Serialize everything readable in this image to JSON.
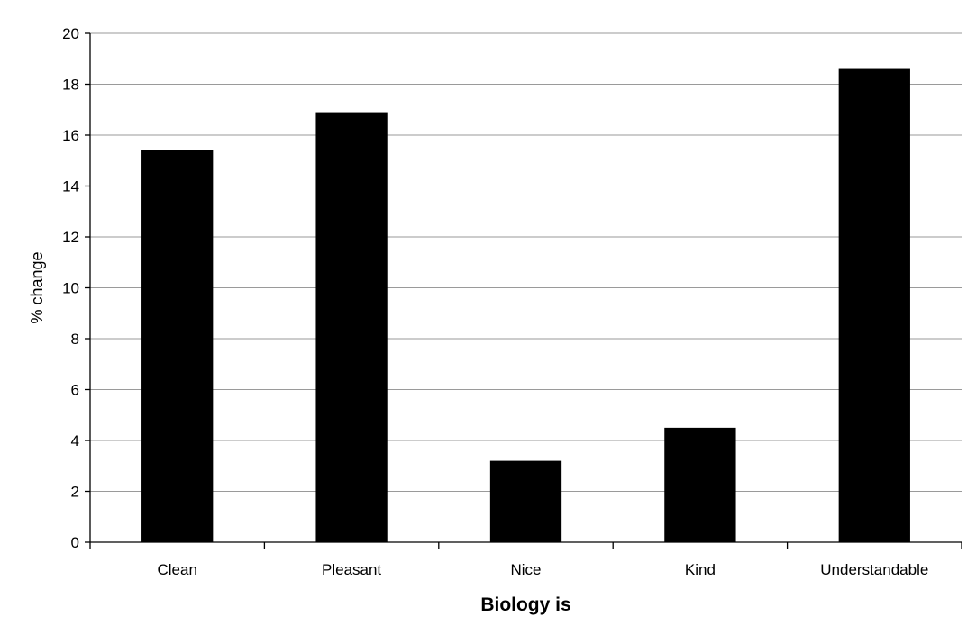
{
  "chart_data": {
    "type": "bar",
    "categories": [
      "Clean",
      "Pleasant",
      "Nice",
      "Kind",
      "Understandable"
    ],
    "values": [
      15.4,
      16.9,
      3.2,
      4.5,
      18.6
    ],
    "title": "",
    "xlabel": "Biology is",
    "ylabel": "% change",
    "ylim": [
      0,
      20
    ],
    "yticks": [
      "0",
      "2",
      "4",
      "6",
      "8",
      "10",
      "12",
      "14",
      "16",
      "18",
      "20"
    ],
    "grid": true,
    "legend": "none",
    "bar_color": "#000000"
  }
}
